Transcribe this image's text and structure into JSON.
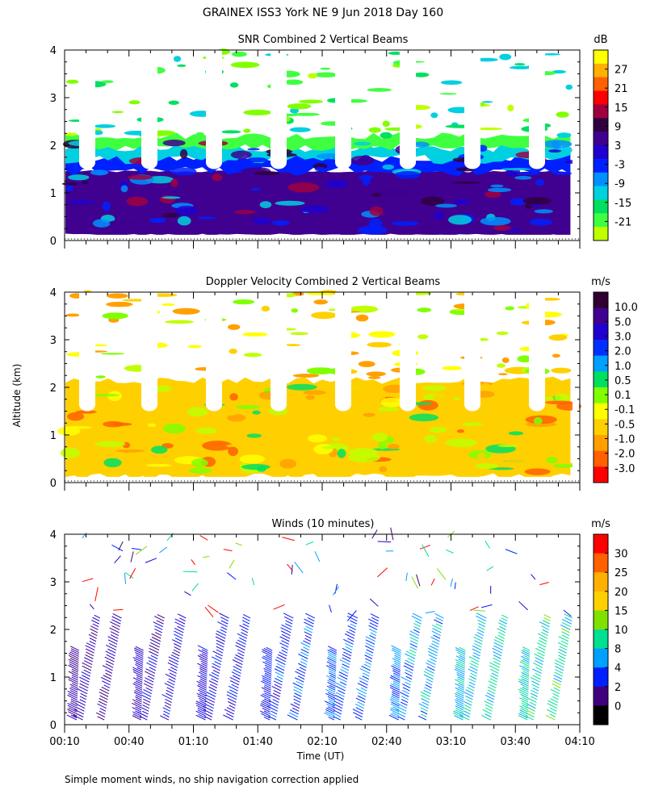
{
  "header": {
    "title": "GRAINEX ISS3 York NE   9 Jun 2018 Day 160",
    "footnote": "Simple moment winds, no ship navigation correction applied",
    "ylabel": "Altitude (km)",
    "xlabel": "Time (UT)"
  },
  "chart_data": [
    {
      "type": "heatmap",
      "title": "SNR Combined 2 Vertical Beams",
      "ylabel": "Altitude (km)",
      "ylim": [
        0,
        4
      ],
      "yticks": [
        "0",
        "1",
        "2",
        "3",
        "4"
      ],
      "xlim": [
        "00:10",
        "04:10"
      ],
      "colorbar_unit": "dB",
      "colorbar_labels": [
        "27",
        "21",
        "15",
        "9",
        "3",
        "-3",
        "-9",
        "-15",
        "-21"
      ],
      "colors": [
        "#ffff00",
        "#ffb000",
        "#ff6000",
        "#ff0000",
        "#a00040",
        "#300040",
        "#400090",
        "#2000d0",
        "#0020ff",
        "#0090ff",
        "#00d0e0",
        "#00e060",
        "#40ff40",
        "#c0ff00"
      ]
    },
    {
      "type": "heatmap",
      "title": "Doppler Velocity Combined 2 Vertical Beams",
      "ylabel": "Altitude (km)",
      "ylim": [
        0,
        4
      ],
      "yticks": [
        "0",
        "1",
        "2",
        "3",
        "4"
      ],
      "xlim": [
        "00:10",
        "04:10"
      ],
      "colorbar_unit": "m/s",
      "colorbar_labels": [
        "10.0",
        "5.0",
        "3.0",
        "2.0",
        "1.0",
        "0.5",
        "0.1",
        "-0.1",
        "-0.5",
        "-1.0",
        "-2.0",
        "-3.0"
      ],
      "colors": [
        "#300030",
        "#400090",
        "#2000d0",
        "#0030ff",
        "#00a0ff",
        "#00e060",
        "#80ff00",
        "#ffff00",
        "#ffd000",
        "#ffa000",
        "#ff6000",
        "#ff0000"
      ]
    },
    {
      "type": "scatter",
      "title": "Winds (10 minutes)",
      "ylabel": "Altitude (km)",
      "xlabel": "Time (UT)",
      "ylim": [
        0,
        4
      ],
      "yticks": [
        "0",
        "1",
        "2",
        "3",
        "4"
      ],
      "x": [
        "00:10",
        "00:40",
        "01:10",
        "01:40",
        "02:10",
        "02:40",
        "03:10",
        "03:40",
        "04:10"
      ],
      "colorbar_unit": "m/s",
      "colorbar_labels": [
        "30",
        "25",
        "20",
        "15",
        "10",
        "8",
        "4",
        "2",
        "0"
      ],
      "colors": [
        "#ff0000",
        "#ff6000",
        "#ffb000",
        "#ffd000",
        "#80e000",
        "#00e090",
        "#00a0ff",
        "#0020ff",
        "#400080",
        "#000000"
      ],
      "profile_times_min": [
        10,
        20,
        30,
        40,
        50,
        60,
        70,
        80,
        90,
        100,
        110,
        120,
        130,
        140,
        150,
        160,
        170,
        180,
        190,
        200,
        210,
        220,
        230,
        240
      ]
    }
  ]
}
